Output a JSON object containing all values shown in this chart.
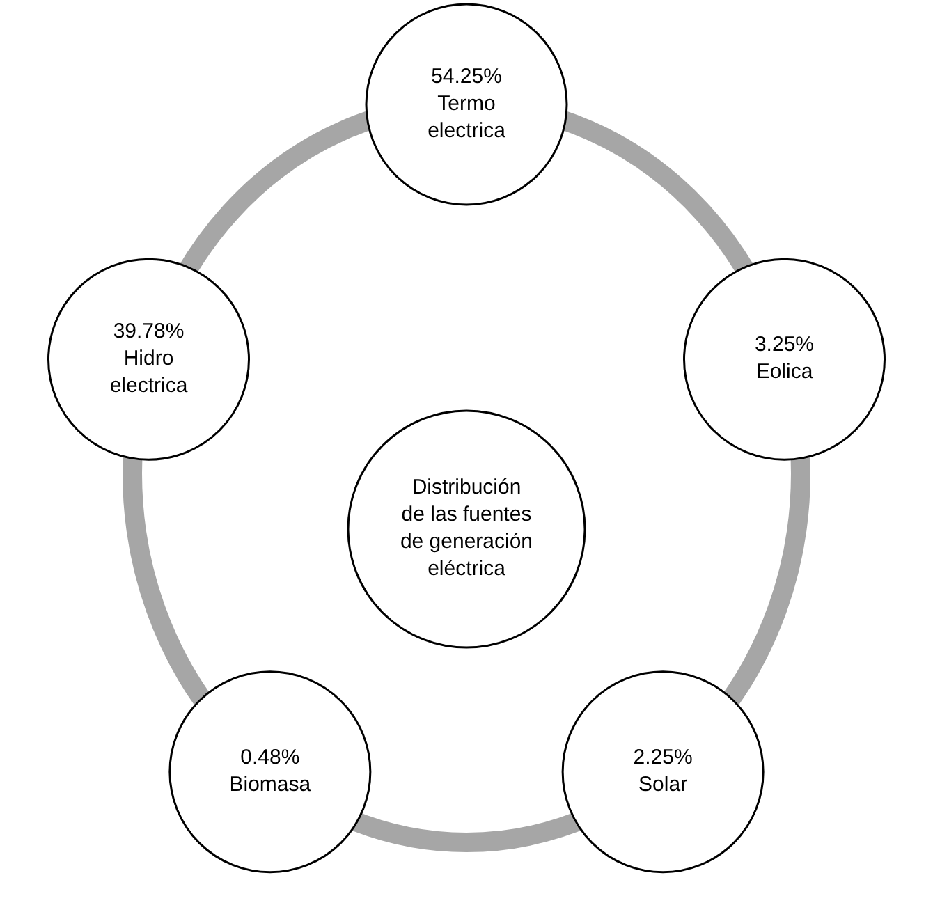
{
  "chart_data": {
    "type": "other",
    "title": "Distribución de las fuentes de generación eléctrica",
    "categories": [
      "Termo electrica",
      "Eolica",
      "Solar",
      "Biomasa",
      "Hidro electrica"
    ],
    "values": [
      54.25,
      3.25,
      2.25,
      0.48,
      39.78
    ],
    "value_labels": [
      "54.25%",
      "3.25%",
      "2.25%",
      "0.48%",
      "39.78%"
    ]
  }
}
